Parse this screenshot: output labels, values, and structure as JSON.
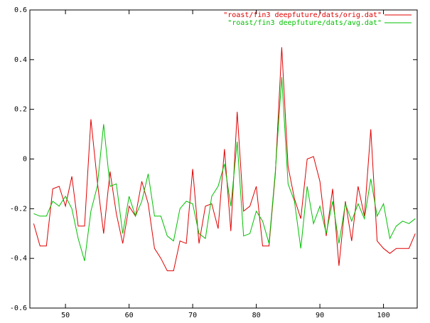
{
  "chart_data": {
    "type": "line",
    "x": [
      45,
      46,
      47,
      48,
      49,
      50,
      51,
      52,
      53,
      54,
      55,
      56,
      57,
      58,
      59,
      60,
      61,
      62,
      63,
      64,
      65,
      66,
      67,
      68,
      69,
      70,
      71,
      72,
      73,
      74,
      75,
      76,
      77,
      78,
      79,
      80,
      81,
      82,
      83,
      84,
      85,
      86,
      87,
      88,
      89,
      90,
      91,
      92,
      93,
      94,
      95,
      96,
      97,
      98,
      99,
      100,
      101,
      102,
      103,
      104,
      105
    ],
    "series": [
      {
        "name": "\"roast/fin3 deepfuture/dats/orig.dat\"",
        "color": "#e00000",
        "values": [
          -0.26,
          -0.35,
          -0.35,
          -0.12,
          -0.11,
          -0.19,
          -0.07,
          -0.27,
          -0.27,
          0.16,
          -0.09,
          -0.3,
          -0.05,
          -0.22,
          -0.34,
          -0.19,
          -0.23,
          -0.09,
          -0.18,
          -0.36,
          -0.4,
          -0.45,
          -0.45,
          -0.33,
          -0.34,
          -0.04,
          -0.34,
          -0.19,
          -0.18,
          -0.28,
          0.04,
          -0.29,
          0.19,
          -0.21,
          -0.19,
          -0.11,
          -0.35,
          -0.35,
          -0.06,
          0.45,
          -0.03,
          -0.16,
          -0.24,
          0.0,
          0.01,
          -0.09,
          -0.31,
          -0.12,
          -0.43,
          -0.17,
          -0.33,
          -0.11,
          -0.23,
          0.12,
          -0.33,
          -0.36,
          -0.38,
          -0.36,
          -0.36,
          -0.36,
          -0.3
        ]
      },
      {
        "name": "\"roast/fin3 deepfuture/dats/avg.dat\"",
        "color": "#00c000",
        "values": [
          -0.22,
          -0.23,
          -0.23,
          -0.17,
          -0.19,
          -0.15,
          -0.2,
          -0.32,
          -0.41,
          -0.21,
          -0.11,
          0.14,
          -0.11,
          -0.1,
          -0.3,
          -0.15,
          -0.23,
          -0.17,
          -0.06,
          -0.23,
          -0.23,
          -0.31,
          -0.33,
          -0.2,
          -0.17,
          -0.18,
          -0.3,
          -0.32,
          -0.15,
          -0.11,
          -0.02,
          -0.19,
          0.07,
          -0.31,
          -0.3,
          -0.21,
          -0.25,
          -0.34,
          -0.05,
          0.33,
          -0.1,
          -0.17,
          -0.36,
          -0.11,
          -0.26,
          -0.19,
          -0.3,
          -0.17,
          -0.34,
          -0.18,
          -0.25,
          -0.18,
          -0.24,
          -0.08,
          -0.23,
          -0.18,
          -0.32,
          -0.27,
          -0.25,
          -0.26,
          -0.24
        ]
      }
    ],
    "xlim": [
      44.4,
      105.3
    ],
    "xticks": [
      50,
      60,
      70,
      80,
      90,
      100
    ],
    "ylim": [
      -0.6,
      0.6
    ],
    "yticks": [
      -0.6,
      -0.4,
      -0.2,
      0,
      0.2,
      0.4,
      0.6
    ],
    "legend": "top-right"
  }
}
